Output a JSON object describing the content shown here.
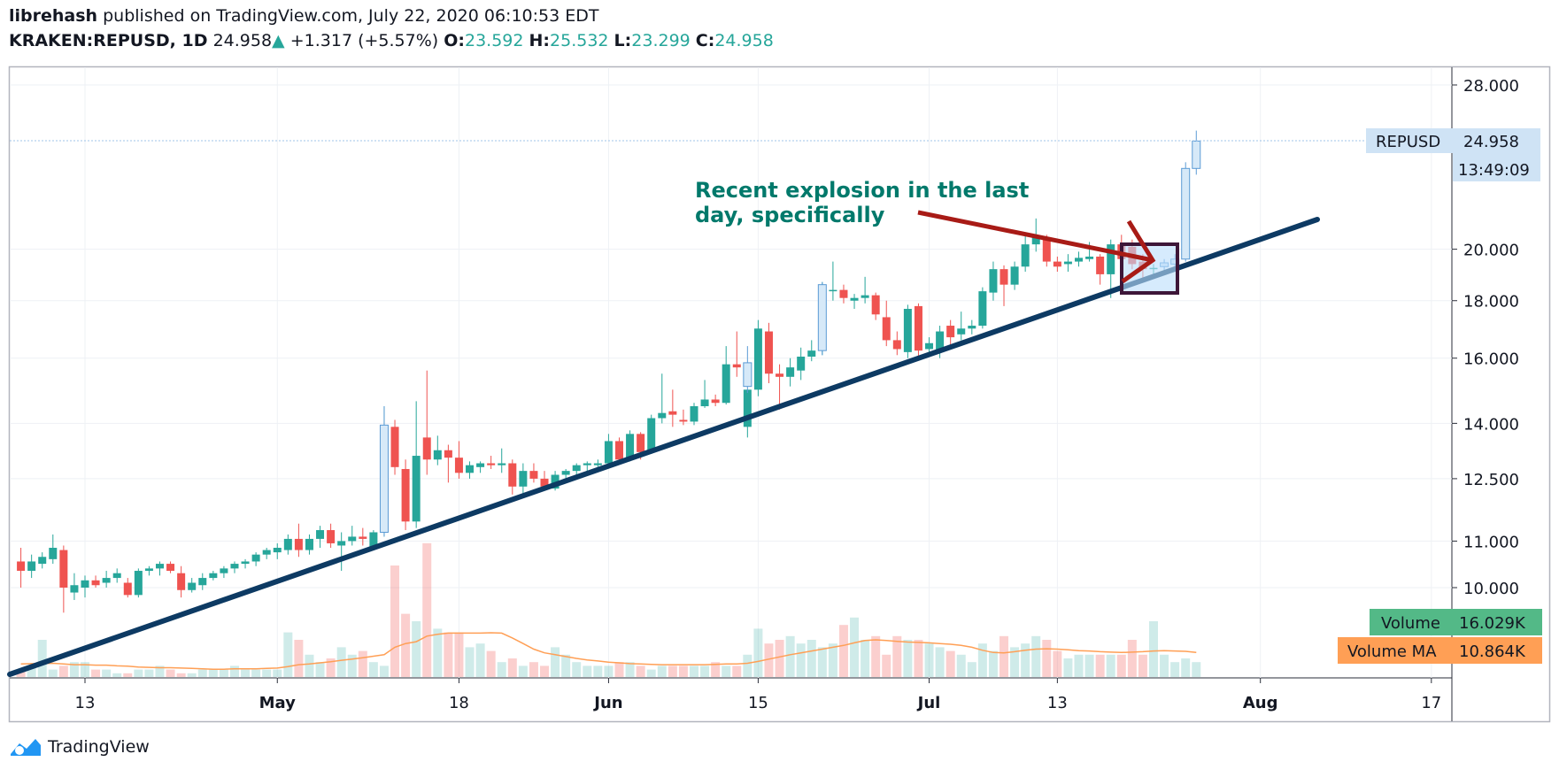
{
  "header": {
    "author": "librehash",
    "published_text": " published on TradingView.com, July 22, 2020 06:10:53 EDT",
    "symbol": "KRAKEN:REPUSD, 1D",
    "last": "24.958",
    "up_arrow": "▲",
    "change": "+1.317 (+5.57%)",
    "o_label": "O:",
    "o_value": "23.592",
    "h_label": "H:",
    "h_value": "25.532",
    "l_label": "L:",
    "l_value": "23.299",
    "c_label": "C:",
    "c_value": "24.958"
  },
  "footer": {
    "brand": "TradingView"
  },
  "colors": {
    "up": "#26a69a",
    "down": "#ef5350",
    "trendline": "#0d3a63",
    "annotation_text": "#00796b",
    "arrow": "#a81b16",
    "box_border": "#3d1638"
  },
  "chart_data": {
    "type": "candlestick",
    "symbol": "REPUSD",
    "scale": "log",
    "y_ticks": [
      "28.000",
      "20.000",
      "18.000",
      "16.000",
      "14.000",
      "12.500",
      "11.000",
      "10.000"
    ],
    "x_ticks": [
      "13",
      "May",
      "18",
      "Jun",
      "15",
      "Jul",
      "13",
      "Aug",
      "17"
    ],
    "last_price_label": {
      "name": "REPUSD",
      "value": "24.958",
      "countdown": "13:49:09"
    },
    "volume_legend": [
      {
        "name": "Volume",
        "value": "16.029K",
        "color": "#53b987"
      },
      {
        "name": "Volume MA",
        "value": "10.864K",
        "color": "#ff9f55"
      }
    ],
    "annotation": {
      "text_line1": "Recent explosion in the last",
      "text_line2": "day, specifically"
    },
    "candles": [
      {
        "d": "2020-04-07",
        "o": 10.55,
        "h": 10.85,
        "l": 10.0,
        "c": 10.35
      },
      {
        "d": "2020-04-08",
        "o": 10.35,
        "h": 10.7,
        "l": 10.2,
        "c": 10.55
      },
      {
        "d": "2020-04-09",
        "o": 10.5,
        "h": 10.75,
        "l": 10.4,
        "c": 10.65
      },
      {
        "d": "2020-04-10",
        "o": 10.6,
        "h": 11.15,
        "l": 10.5,
        "c": 10.85
      },
      {
        "d": "2020-04-11",
        "o": 10.8,
        "h": 10.9,
        "l": 9.5,
        "c": 10.0
      },
      {
        "d": "2020-04-12",
        "o": 9.9,
        "h": 10.3,
        "l": 9.75,
        "c": 10.05
      },
      {
        "d": "2020-04-13",
        "o": 10.0,
        "h": 10.25,
        "l": 9.8,
        "c": 10.15
      },
      {
        "d": "2020-04-14",
        "o": 10.15,
        "h": 10.25,
        "l": 10.0,
        "c": 10.05
      },
      {
        "d": "2020-04-15",
        "o": 10.1,
        "h": 10.35,
        "l": 10.0,
        "c": 10.2
      },
      {
        "d": "2020-04-16",
        "o": 10.2,
        "h": 10.4,
        "l": 10.1,
        "c": 10.3
      },
      {
        "d": "2020-04-17",
        "o": 10.1,
        "h": 10.2,
        "l": 9.8,
        "c": 9.85
      },
      {
        "d": "2020-04-18",
        "o": 9.85,
        "h": 10.4,
        "l": 9.8,
        "c": 10.35
      },
      {
        "d": "2020-04-19",
        "o": 10.35,
        "h": 10.45,
        "l": 10.25,
        "c": 10.4
      },
      {
        "d": "2020-04-20",
        "o": 10.4,
        "h": 10.55,
        "l": 10.25,
        "c": 10.5
      },
      {
        "d": "2020-04-21",
        "o": 10.5,
        "h": 10.55,
        "l": 10.3,
        "c": 10.35
      },
      {
        "d": "2020-04-22",
        "o": 10.3,
        "h": 10.45,
        "l": 9.8,
        "c": 9.95
      },
      {
        "d": "2020-04-23",
        "o": 9.95,
        "h": 10.2,
        "l": 9.9,
        "c": 10.1
      },
      {
        "d": "2020-04-24",
        "o": 10.05,
        "h": 10.3,
        "l": 9.95,
        "c": 10.2
      },
      {
        "d": "2020-04-25",
        "o": 10.2,
        "h": 10.35,
        "l": 10.15,
        "c": 10.3
      },
      {
        "d": "2020-04-26",
        "o": 10.3,
        "h": 10.45,
        "l": 10.2,
        "c": 10.4
      },
      {
        "d": "2020-04-27",
        "o": 10.4,
        "h": 10.55,
        "l": 10.3,
        "c": 10.5
      },
      {
        "d": "2020-04-28",
        "o": 10.5,
        "h": 10.6,
        "l": 10.4,
        "c": 10.55
      },
      {
        "d": "2020-04-29",
        "o": 10.55,
        "h": 10.75,
        "l": 10.45,
        "c": 10.7
      },
      {
        "d": "2020-04-30",
        "o": 10.7,
        "h": 10.85,
        "l": 10.6,
        "c": 10.8
      },
      {
        "d": "2020-05-01",
        "o": 10.75,
        "h": 10.95,
        "l": 10.6,
        "c": 10.85
      },
      {
        "d": "2020-05-02",
        "o": 10.8,
        "h": 11.15,
        "l": 10.7,
        "c": 11.05
      },
      {
        "d": "2020-05-03",
        "o": 11.05,
        "h": 11.4,
        "l": 10.65,
        "c": 10.8
      },
      {
        "d": "2020-05-04",
        "o": 10.8,
        "h": 11.15,
        "l": 10.7,
        "c": 11.05
      },
      {
        "d": "2020-05-05",
        "o": 11.05,
        "h": 11.35,
        "l": 10.85,
        "c": 11.25
      },
      {
        "d": "2020-05-06",
        "o": 11.25,
        "h": 11.4,
        "l": 10.85,
        "c": 10.95
      },
      {
        "d": "2020-05-07",
        "o": 10.9,
        "h": 11.2,
        "l": 10.35,
        "c": 11.0
      },
      {
        "d": "2020-05-08",
        "o": 11.0,
        "h": 11.35,
        "l": 10.9,
        "c": 11.1
      },
      {
        "d": "2020-05-09",
        "o": 11.1,
        "h": 11.3,
        "l": 10.9,
        "c": 11.05
      },
      {
        "d": "2020-05-10",
        "o": 10.85,
        "h": 11.25,
        "l": 10.8,
        "c": 11.2
      },
      {
        "d": "2020-05-11",
        "o": 11.2,
        "h": 14.5,
        "l": 11.1,
        "c": 13.95
      },
      {
        "d": "2020-05-12",
        "o": 13.9,
        "h": 14.1,
        "l": 12.6,
        "c": 12.8
      },
      {
        "d": "2020-05-13",
        "o": 12.75,
        "h": 13.0,
        "l": 11.25,
        "c": 11.45
      },
      {
        "d": "2020-05-14",
        "o": 11.45,
        "h": 14.65,
        "l": 11.3,
        "c": 13.1
      },
      {
        "d": "2020-05-15",
        "o": 13.6,
        "h": 15.6,
        "l": 12.6,
        "c": 13.0
      },
      {
        "d": "2020-05-16",
        "o": 13.0,
        "h": 13.65,
        "l": 12.85,
        "c": 13.25
      },
      {
        "d": "2020-05-17",
        "o": 13.25,
        "h": 13.4,
        "l": 12.4,
        "c": 13.05
      },
      {
        "d": "2020-05-18",
        "o": 13.05,
        "h": 13.5,
        "l": 12.5,
        "c": 12.65
      },
      {
        "d": "2020-05-19",
        "o": 12.65,
        "h": 12.95,
        "l": 12.5,
        "c": 12.85
      },
      {
        "d": "2020-05-20",
        "o": 12.8,
        "h": 12.95,
        "l": 12.65,
        "c": 12.9
      },
      {
        "d": "2020-05-21",
        "o": 12.9,
        "h": 13.1,
        "l": 12.75,
        "c": 12.85
      },
      {
        "d": "2020-05-22",
        "o": 12.85,
        "h": 13.3,
        "l": 12.65,
        "c": 12.9
      },
      {
        "d": "2020-05-23",
        "o": 12.9,
        "h": 13.0,
        "l": 12.1,
        "c": 12.3
      },
      {
        "d": "2020-05-24",
        "o": 12.3,
        "h": 12.9,
        "l": 12.1,
        "c": 12.7
      },
      {
        "d": "2020-05-25",
        "o": 12.7,
        "h": 12.9,
        "l": 12.4,
        "c": 12.5
      },
      {
        "d": "2020-05-26",
        "o": 12.5,
        "h": 12.7,
        "l": 12.2,
        "c": 12.3
      },
      {
        "d": "2020-05-27",
        "o": 12.25,
        "h": 12.7,
        "l": 12.2,
        "c": 12.6
      },
      {
        "d": "2020-05-28",
        "o": 12.6,
        "h": 12.75,
        "l": 12.5,
        "c": 12.7
      },
      {
        "d": "2020-05-29",
        "o": 12.7,
        "h": 12.9,
        "l": 12.6,
        "c": 12.85
      },
      {
        "d": "2020-05-30",
        "o": 12.85,
        "h": 12.95,
        "l": 12.7,
        "c": 12.9
      },
      {
        "d": "2020-05-31",
        "o": 12.85,
        "h": 13.0,
        "l": 12.8,
        "c": 12.9
      },
      {
        "d": "2020-06-01",
        "o": 12.9,
        "h": 13.7,
        "l": 12.85,
        "c": 13.5
      },
      {
        "d": "2020-06-02",
        "o": 13.5,
        "h": 13.6,
        "l": 12.9,
        "c": 13.0
      },
      {
        "d": "2020-06-03",
        "o": 13.0,
        "h": 13.8,
        "l": 12.95,
        "c": 13.7
      },
      {
        "d": "2020-06-04",
        "o": 13.7,
        "h": 13.75,
        "l": 13.0,
        "c": 13.2
      },
      {
        "d": "2020-06-05",
        "o": 13.2,
        "h": 14.25,
        "l": 13.15,
        "c": 14.15
      },
      {
        "d": "2020-06-06",
        "o": 14.15,
        "h": 15.5,
        "l": 14.0,
        "c": 14.3
      },
      {
        "d": "2020-06-07",
        "o": 14.35,
        "h": 15.0,
        "l": 13.9,
        "c": 14.25
      },
      {
        "d": "2020-06-08",
        "o": 14.1,
        "h": 14.4,
        "l": 13.95,
        "c": 14.05
      },
      {
        "d": "2020-06-09",
        "o": 14.05,
        "h": 14.6,
        "l": 13.95,
        "c": 14.5
      },
      {
        "d": "2020-06-10",
        "o": 14.5,
        "h": 15.3,
        "l": 14.45,
        "c": 14.7
      },
      {
        "d": "2020-06-11",
        "o": 14.7,
        "h": 14.85,
        "l": 14.5,
        "c": 14.6
      },
      {
        "d": "2020-06-12",
        "o": 14.6,
        "h": 16.4,
        "l": 14.55,
        "c": 15.8
      },
      {
        "d": "2020-06-13",
        "o": 15.8,
        "h": 16.9,
        "l": 15.4,
        "c": 15.7
      },
      {
        "d": "2020-06-14",
        "o": 13.9,
        "h": 15.0,
        "l": 13.6,
        "c": 15.0
      },
      {
        "d": "2020-06-15",
        "o": 15.0,
        "h": 17.3,
        "l": 14.8,
        "c": 17.0
      },
      {
        "d": "2020-06-16",
        "o": 16.9,
        "h": 17.2,
        "l": 15.2,
        "c": 15.5
      },
      {
        "d": "2020-06-17",
        "o": 15.5,
        "h": 15.8,
        "l": 14.4,
        "c": 15.4
      },
      {
        "d": "2020-06-18",
        "o": 15.4,
        "h": 16.0,
        "l": 15.1,
        "c": 15.7
      },
      {
        "d": "2020-06-19",
        "o": 15.6,
        "h": 16.35,
        "l": 15.3,
        "c": 16.05
      },
      {
        "d": "2020-06-20",
        "o": 16.05,
        "h": 16.6,
        "l": 15.9,
        "c": 16.25
      },
      {
        "d": "2020-06-21",
        "o": 16.25,
        "h": 18.7,
        "l": 16.1,
        "c": 18.6
      },
      {
        "d": "2020-06-22",
        "o": 18.4,
        "h": 19.5,
        "l": 18.0,
        "c": 18.4
      },
      {
        "d": "2020-06-23",
        "o": 18.4,
        "h": 18.6,
        "l": 17.9,
        "c": 18.1
      },
      {
        "d": "2020-06-24",
        "o": 18.0,
        "h": 18.25,
        "l": 17.7,
        "c": 18.1
      },
      {
        "d": "2020-06-25",
        "o": 18.1,
        "h": 18.9,
        "l": 17.9,
        "c": 18.2
      },
      {
        "d": "2020-06-26",
        "o": 18.2,
        "h": 18.3,
        "l": 17.3,
        "c": 17.5
      },
      {
        "d": "2020-06-27",
        "o": 17.4,
        "h": 18.0,
        "l": 16.4,
        "c": 16.6
      },
      {
        "d": "2020-06-28",
        "o": 16.6,
        "h": 16.9,
        "l": 16.1,
        "c": 16.3
      },
      {
        "d": "2020-06-29",
        "o": 16.2,
        "h": 17.85,
        "l": 16.0,
        "c": 17.7
      },
      {
        "d": "2020-06-30",
        "o": 17.8,
        "h": 17.9,
        "l": 16.0,
        "c": 16.25
      },
      {
        "d": "2020-07-01",
        "o": 16.3,
        "h": 16.7,
        "l": 16.1,
        "c": 16.5
      },
      {
        "d": "2020-07-02",
        "o": 16.2,
        "h": 17.1,
        "l": 16.0,
        "c": 16.9
      },
      {
        "d": "2020-07-03",
        "o": 17.1,
        "h": 17.3,
        "l": 16.4,
        "c": 16.7
      },
      {
        "d": "2020-07-04",
        "o": 16.8,
        "h": 17.6,
        "l": 16.6,
        "c": 17.0
      },
      {
        "d": "2020-07-05",
        "o": 17.0,
        "h": 17.3,
        "l": 16.8,
        "c": 17.1
      },
      {
        "d": "2020-07-06",
        "o": 17.1,
        "h": 18.5,
        "l": 17.0,
        "c": 18.35
      },
      {
        "d": "2020-07-07",
        "o": 18.3,
        "h": 19.5,
        "l": 18.0,
        "c": 19.2
      },
      {
        "d": "2020-07-08",
        "o": 19.2,
        "h": 19.35,
        "l": 17.8,
        "c": 18.6
      },
      {
        "d": "2020-07-09",
        "o": 18.6,
        "h": 19.5,
        "l": 18.4,
        "c": 19.3
      },
      {
        "d": "2020-07-10",
        "o": 19.3,
        "h": 20.7,
        "l": 19.1,
        "c": 20.2
      },
      {
        "d": "2020-07-11",
        "o": 20.2,
        "h": 21.3,
        "l": 19.9,
        "c": 20.5
      },
      {
        "d": "2020-07-12",
        "o": 20.5,
        "h": 20.6,
        "l": 19.3,
        "c": 19.5
      },
      {
        "d": "2020-07-13",
        "o": 19.5,
        "h": 19.7,
        "l": 19.1,
        "c": 19.3
      },
      {
        "d": "2020-07-14",
        "o": 19.4,
        "h": 19.8,
        "l": 19.1,
        "c": 19.5
      },
      {
        "d": "2020-07-15",
        "o": 19.5,
        "h": 19.9,
        "l": 19.3,
        "c": 19.65
      },
      {
        "d": "2020-07-16",
        "o": 19.6,
        "h": 20.3,
        "l": 19.5,
        "c": 19.7
      },
      {
        "d": "2020-07-17",
        "o": 19.7,
        "h": 19.8,
        "l": 18.6,
        "c": 19.0
      },
      {
        "d": "2020-07-18",
        "o": 19.0,
        "h": 20.4,
        "l": 18.1,
        "c": 20.2
      },
      {
        "d": "2020-07-19",
        "o": 20.2,
        "h": 20.6,
        "l": 19.4,
        "c": 19.6
      },
      {
        "d": "2020-07-20",
        "o": 20.1,
        "h": 20.4,
        "l": 19.2,
        "c": 19.4
      },
      {
        "d": "2020-07-21",
        "o": 19.5,
        "h": 19.8,
        "l": 18.7,
        "c": 19.2
      },
      {
        "d": "2020-07-22",
        "o": 19.2,
        "h": 19.4,
        "l": 19.0,
        "c": 19.25
      }
    ],
    "hollow_candles": [
      {
        "d": "2020-05-11",
        "o": 11.2,
        "h": 14.5,
        "l": 11.1,
        "c": 13.95
      },
      {
        "d": "2020-06-14",
        "o": 15.1,
        "h": 16.4,
        "l": 14.9,
        "c": 15.85
      },
      {
        "d": "2020-06-21",
        "o": 16.25,
        "h": 18.7,
        "l": 16.1,
        "c": 18.6
      },
      {
        "d": "2020-07-23",
        "o": 19.3,
        "h": 19.6,
        "l": 19.1,
        "c": 19.45
      },
      {
        "d": "2020-07-24",
        "o": 19.4,
        "h": 19.8,
        "l": 19.2,
        "c": 19.6
      },
      {
        "d": "2020-07-25",
        "o": 19.6,
        "h": 23.9,
        "l": 19.5,
        "c": 23.6
      },
      {
        "d": "2020-07-26",
        "o": 23.6,
        "h": 25.5,
        "l": 23.3,
        "c": 24.96
      }
    ],
    "volumes": [
      2,
      3,
      10,
      2,
      3,
      4,
      4,
      2,
      2,
      1,
      1,
      2,
      2,
      3,
      2,
      1,
      1,
      2,
      2,
      2,
      3,
      2,
      2,
      2,
      2,
      12,
      10,
      6,
      4,
      5,
      8,
      6,
      7,
      4,
      3,
      30,
      17,
      15,
      36,
      13,
      12,
      12,
      8,
      9,
      7,
      4,
      5,
      3,
      4,
      3,
      8,
      6,
      4,
      3,
      3,
      3,
      4,
      4,
      3,
      2,
      3,
      3,
      3,
      3,
      3,
      4,
      3,
      3,
      6,
      13,
      9,
      10,
      11,
      9,
      10,
      8,
      9,
      14,
      16,
      10,
      11,
      6,
      11,
      10,
      10,
      9,
      8,
      7,
      6,
      4,
      9,
      7,
      11,
      8,
      9,
      11,
      10,
      7,
      5,
      6,
      6,
      6,
      6,
      6,
      10,
      6,
      15,
      6,
      4,
      5,
      4,
      5,
      4,
      9,
      30,
      23
    ],
    "volume_ma": [
      3.5,
      3.6,
      3.6,
      3.7,
      3.5,
      3.3,
      3.3,
      3.2,
      3.2,
      3.0,
      2.9,
      2.7,
      2.6,
      2.5,
      2.5,
      2.4,
      2.3,
      2.2,
      2.1,
      2.1,
      2.2,
      2.2,
      2.2,
      2.3,
      2.4,
      2.8,
      3.3,
      3.5,
      3.8,
      4.1,
      4.5,
      4.8,
      5.2,
      5.6,
      6.0,
      8.0,
      9.0,
      9.5,
      11.0,
      11.5,
      11.8,
      11.8,
      11.8,
      11.8,
      11.9,
      11.8,
      10.5,
      9.0,
      7.5,
      6.5,
      6.0,
      5.5,
      5.0,
      4.6,
      4.3,
      4.0,
      3.8,
      3.6,
      3.5,
      3.4,
      3.3,
      3.3,
      3.3,
      3.3,
      3.3,
      3.4,
      3.5,
      3.5,
      3.7,
      4.2,
      4.8,
      5.4,
      6.0,
      6.5,
      7.0,
      7.5,
      8.0,
      8.5,
      9.2,
      9.8,
      10.0,
      9.8,
      9.6,
      9.4,
      9.3,
      9.2,
      9.0,
      8.8,
      8.5,
      8.0,
      7.2,
      6.6,
      6.5,
      6.8,
      7.2,
      7.5,
      7.6,
      7.5,
      7.3,
      7.1,
      7.0,
      6.8,
      6.7,
      6.6,
      6.7,
      6.8,
      7.0,
      7.1,
      7.0,
      6.9,
      6.6,
      6.4,
      6.2,
      6.4,
      8.0,
      10.8
    ]
  }
}
